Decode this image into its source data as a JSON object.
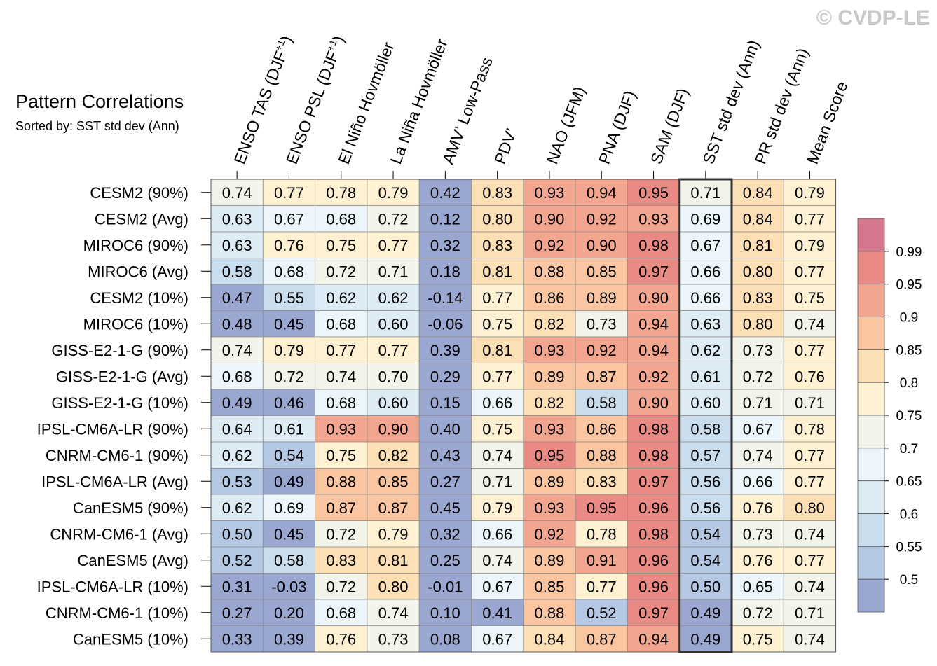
{
  "watermark": "© CVDP-LE",
  "chart_data": {
    "type": "heatmap",
    "title": "Pattern Correlations",
    "subtitle": "Sorted by: SST std dev (Ann)",
    "columns": [
      {
        "label": "ENSO TAS (DJF",
        "sup": "+1",
        "close": ")"
      },
      {
        "label": "ENSO PSL (DJF",
        "sup": "+1",
        "close": ")"
      },
      {
        "label": "El Niño Hovmöller",
        "sup": "",
        "close": ""
      },
      {
        "label": "La Niña Hovmöller",
        "sup": "",
        "close": ""
      },
      {
        "label": "AMV’ Low-Pass",
        "sup": "",
        "close": ""
      },
      {
        "label": "PDV’",
        "sup": "",
        "close": ""
      },
      {
        "label": "NAO (JFM)",
        "sup": "",
        "close": ""
      },
      {
        "label": "PNA (DJF)",
        "sup": "",
        "close": ""
      },
      {
        "label": "SAM (DJF)",
        "sup": "",
        "close": ""
      },
      {
        "label": "SST std dev (Ann)",
        "sup": "",
        "close": ""
      },
      {
        "label": "PR std dev (Ann)",
        "sup": "",
        "close": ""
      },
      {
        "label": "Mean Score",
        "sup": "",
        "close": ""
      }
    ],
    "rows": [
      "CESM2 (90%)",
      "CESM2 (Avg)",
      "MIROC6 (90%)",
      "MIROC6 (Avg)",
      "CESM2 (10%)",
      "MIROC6 (10%)",
      "GISS-E2-1-G (90%)",
      "GISS-E2-1-G (Avg)",
      "GISS-E2-1-G (10%)",
      "IPSL-CM6A-LR (90%)",
      "CNRM-CM6-1 (90%)",
      "IPSL-CM6A-LR (Avg)",
      "CanESM5 (90%)",
      "CNRM-CM6-1 (Avg)",
      "CanESM5 (Avg)",
      "IPSL-CM6A-LR (10%)",
      "CNRM-CM6-1 (10%)",
      "CanESM5 (10%)"
    ],
    "values": [
      [
        "0.74",
        "0.77",
        "0.78",
        "0.79",
        "0.42",
        "0.83",
        "0.93",
        "0.94",
        "0.95",
        "0.71",
        "0.84",
        "0.79"
      ],
      [
        "0.63",
        "0.67",
        "0.68",
        "0.72",
        "0.12",
        "0.80",
        "0.90",
        "0.92",
        "0.93",
        "0.69",
        "0.84",
        "0.77"
      ],
      [
        "0.63",
        "0.76",
        "0.75",
        "0.77",
        "0.32",
        "0.83",
        "0.92",
        "0.90",
        "0.98",
        "0.67",
        "0.81",
        "0.79"
      ],
      [
        "0.58",
        "0.68",
        "0.72",
        "0.71",
        "0.18",
        "0.81",
        "0.88",
        "0.85",
        "0.97",
        "0.66",
        "0.80",
        "0.77"
      ],
      [
        "0.47",
        "0.55",
        "0.62",
        "0.62",
        "-0.14",
        "0.77",
        "0.86",
        "0.89",
        "0.90",
        "0.66",
        "0.83",
        "0.75"
      ],
      [
        "0.48",
        "0.45",
        "0.68",
        "0.60",
        "-0.06",
        "0.75",
        "0.82",
        "0.73",
        "0.94",
        "0.63",
        "0.80",
        "0.74"
      ],
      [
        "0.74",
        "0.79",
        "0.77",
        "0.77",
        "0.39",
        "0.81",
        "0.93",
        "0.92",
        "0.94",
        "0.62",
        "0.73",
        "0.77"
      ],
      [
        "0.68",
        "0.72",
        "0.74",
        "0.70",
        "0.29",
        "0.77",
        "0.89",
        "0.87",
        "0.92",
        "0.61",
        "0.72",
        "0.76"
      ],
      [
        "0.49",
        "0.46",
        "0.68",
        "0.60",
        "0.15",
        "0.66",
        "0.82",
        "0.58",
        "0.90",
        "0.60",
        "0.71",
        "0.71"
      ],
      [
        "0.64",
        "0.61",
        "0.93",
        "0.90",
        "0.40",
        "0.75",
        "0.93",
        "0.86",
        "0.98",
        "0.58",
        "0.67",
        "0.78"
      ],
      [
        "0.62",
        "0.54",
        "0.75",
        "0.82",
        "0.43",
        "0.74",
        "0.95",
        "0.88",
        "0.98",
        "0.57",
        "0.74",
        "0.77"
      ],
      [
        "0.53",
        "0.49",
        "0.88",
        "0.85",
        "0.27",
        "0.71",
        "0.89",
        "0.83",
        "0.97",
        "0.56",
        "0.66",
        "0.77"
      ],
      [
        "0.62",
        "0.69",
        "0.87",
        "0.87",
        "0.45",
        "0.79",
        "0.93",
        "0.95",
        "0.96",
        "0.56",
        "0.76",
        "0.80"
      ],
      [
        "0.50",
        "0.45",
        "0.72",
        "0.79",
        "0.32",
        "0.66",
        "0.92",
        "0.78",
        "0.98",
        "0.54",
        "0.73",
        "0.74"
      ],
      [
        "0.52",
        "0.58",
        "0.83",
        "0.81",
        "0.25",
        "0.74",
        "0.89",
        "0.91",
        "0.96",
        "0.54",
        "0.76",
        "0.77"
      ],
      [
        "0.31",
        "-0.03",
        "0.72",
        "0.80",
        "-0.01",
        "0.67",
        "0.85",
        "0.77",
        "0.96",
        "0.50",
        "0.65",
        "0.74"
      ],
      [
        "0.27",
        "0.20",
        "0.68",
        "0.74",
        "0.10",
        "0.41",
        "0.88",
        "0.52",
        "0.97",
        "0.49",
        "0.72",
        "0.71"
      ],
      [
        "0.33",
        "0.39",
        "0.76",
        "0.73",
        "0.08",
        "0.67",
        "0.84",
        "0.87",
        "0.94",
        "0.49",
        "0.75",
        "0.74"
      ]
    ],
    "highlight_column": 9,
    "colorbar": {
      "labels": [
        "0.99",
        "0.95",
        "0.9",
        "0.85",
        "0.8",
        "0.75",
        "0.7",
        "0.65",
        "0.6",
        "0.55",
        "0.5"
      ],
      "thresholds": [
        0.5,
        0.55,
        0.6,
        0.65,
        0.7,
        0.75,
        0.8,
        0.85,
        0.9,
        0.95,
        0.99
      ],
      "colors": [
        "#9aa8d1",
        "#b5c8e3",
        "#c9dded",
        "#dcebf4",
        "#ecf5f9",
        "#f3f4e9",
        "#fdf1d2",
        "#fddfb5",
        "#f9c6a1",
        "#f2a58f",
        "#e98a85",
        "#d5788e"
      ]
    }
  }
}
